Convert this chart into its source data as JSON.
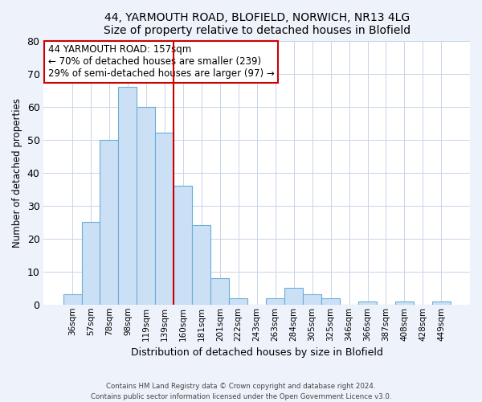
{
  "title1": "44, YARMOUTH ROAD, BLOFIELD, NORWICH, NR13 4LG",
  "title2": "Size of property relative to detached houses in Blofield",
  "xlabel": "Distribution of detached houses by size in Blofield",
  "ylabel": "Number of detached properties",
  "bar_labels": [
    "36sqm",
    "57sqm",
    "78sqm",
    "98sqm",
    "119sqm",
    "139sqm",
    "160sqm",
    "181sqm",
    "201sqm",
    "222sqm",
    "243sqm",
    "263sqm",
    "284sqm",
    "305sqm",
    "325sqm",
    "346sqm",
    "366sqm",
    "387sqm",
    "408sqm",
    "428sqm",
    "449sqm"
  ],
  "bar_values": [
    3,
    25,
    50,
    66,
    60,
    52,
    36,
    24,
    8,
    2,
    0,
    2,
    5,
    3,
    2,
    0,
    1,
    0,
    1,
    0,
    1
  ],
  "bar_color": "#cce0f5",
  "bar_edge_color": "#6aaed6",
  "vline_color": "#cc0000",
  "vline_x_idx": 5.5,
  "ylim": [
    0,
    80
  ],
  "yticks": [
    0,
    10,
    20,
    30,
    40,
    50,
    60,
    70,
    80
  ],
  "annotation_title": "44 YARMOUTH ROAD: 157sqm",
  "annotation_line1": "← 70% of detached houses are smaller (239)",
  "annotation_line2": "29% of semi-detached houses are larger (97) →",
  "footer1": "Contains HM Land Registry data © Crown copyright and database right 2024.",
  "footer2": "Contains public sector information licensed under the Open Government Licence v3.0.",
  "bg_color": "#eef2fa",
  "plot_bg_color": "#ffffff",
  "grid_color": "#c8d4e8"
}
